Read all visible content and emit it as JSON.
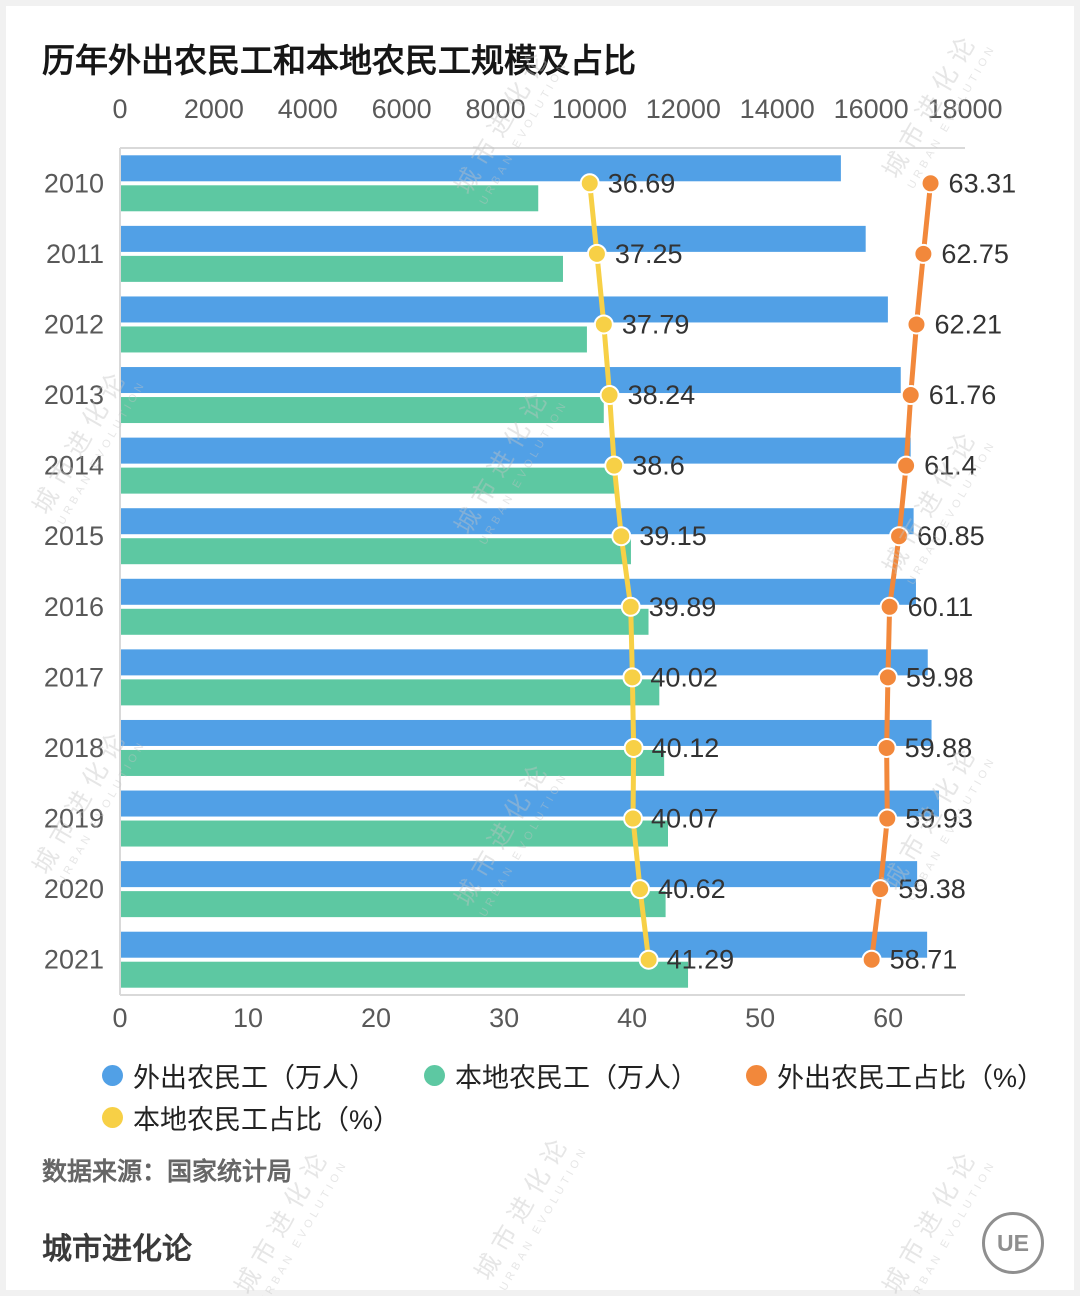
{
  "title": "历年外出农民工和本地农民工规模及占比",
  "source": "数据来源：国家统计局",
  "footer": "城市进化论",
  "logo_text": "UE",
  "watermark": {
    "line1": "城市进化论",
    "line2": "URBAN EVOLUTION"
  },
  "colors": {
    "blue": "#51a0e6",
    "green": "#5dc8a2",
    "orange": "#f2883b",
    "yellow": "#f7d046",
    "axis_line": "#d9d9d9",
    "axis_text": "#595959",
    "point_label": "#333333"
  },
  "chart_data": {
    "type": "bar",
    "orientation": "horizontal",
    "title": "历年外出农民工和本地农民工规模及占比",
    "categories": [
      "2010",
      "2011",
      "2012",
      "2013",
      "2014",
      "2015",
      "2016",
      "2017",
      "2018",
      "2019",
      "2020",
      "2021"
    ],
    "series": [
      {
        "name": "外出农民工（万人）",
        "kind": "bar",
        "color_key": "blue",
        "values": [
          15335,
          15863,
          16336,
          16610,
          16821,
          16884,
          16934,
          17185,
          17266,
          17425,
          16959,
          17172
        ]
      },
      {
        "name": "本地农民工（万人）",
        "kind": "bar",
        "color_key": "green",
        "values": [
          8888,
          9415,
          9925,
          10284,
          10574,
          10863,
          11237,
          11467,
          11570,
          11652,
          11601,
          12079
        ]
      },
      {
        "name": "外出农民工占比（%）",
        "kind": "line",
        "color_key": "orange",
        "values": [
          63.31,
          62.75,
          62.21,
          61.76,
          61.4,
          60.85,
          60.11,
          59.98,
          59.88,
          59.93,
          59.38,
          58.71
        ]
      },
      {
        "name": "本地农民工占比（%）",
        "kind": "line",
        "color_key": "yellow",
        "values": [
          36.69,
          37.25,
          37.79,
          38.24,
          38.6,
          39.15,
          39.89,
          40.02,
          40.12,
          40.07,
          40.62,
          41.29
        ]
      }
    ],
    "value_axis": {
      "position": "top",
      "min": 0,
      "max": 18000,
      "ticks": [
        0,
        2000,
        4000,
        6000,
        8000,
        10000,
        12000,
        14000,
        16000,
        18000
      ]
    },
    "percent_axis": {
      "position": "bottom",
      "min": 0,
      "max": 66,
      "ticks": [
        0,
        10,
        20,
        30,
        40,
        50,
        60
      ]
    },
    "legend": [
      "外出农民工（万人）",
      "本地农民工（万人）",
      "外出农民工占比（%）",
      "本地农民工占比（%）"
    ],
    "legend_position": "bottom",
    "grid": false
  }
}
